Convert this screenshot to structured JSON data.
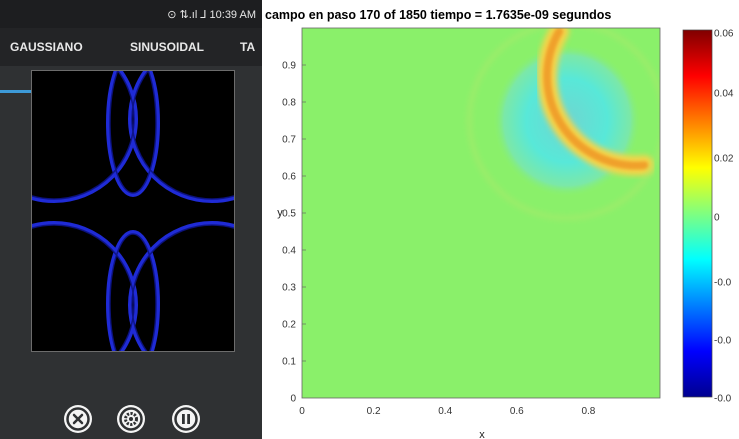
{
  "status_bar": {
    "text": "⊙ ⇅.ıl ⅃ 10:39 AM"
  },
  "tabs": [
    {
      "label": "GAUSSIANO",
      "selected": true
    },
    {
      "label": "SINUSOIDAL",
      "selected": false
    },
    {
      "label": "TA",
      "selected": false
    }
  ],
  "colors": {
    "accent": "#3d9ad8",
    "pattern": "#1f2bd6",
    "field_background": "#8af06a"
  },
  "controls": [
    {
      "icon": "close-icon"
    },
    {
      "icon": "gear-icon"
    },
    {
      "icon": "pause-icon"
    }
  ],
  "chart_data": {
    "type": "heatmap",
    "title": "campo en paso 170 of 1850 tiempo = 1.7635e-09 segundos",
    "xlabel": "x",
    "ylabel": "y",
    "xlim": [
      0,
      1
    ],
    "ylim": [
      0,
      1
    ],
    "x_ticks": [
      "0",
      "0.2",
      "0.4",
      "0.6",
      "0.8"
    ],
    "y_ticks": [
      "0",
      "0.1",
      "0.2",
      "0.3",
      "0.4",
      "0.5",
      "0.6",
      "0.7",
      "0.8",
      "0.9"
    ],
    "colorbar_ticks": [
      "0.06",
      "0.04",
      "0.02",
      "0",
      "-0.0",
      "-0.0",
      "-0.0"
    ],
    "features": [
      {
        "kind": "negative disc",
        "center": [
          0.74,
          0.75
        ],
        "radius": 0.18
      },
      {
        "kind": "positive crescent",
        "center": [
          0.74,
          0.75
        ],
        "radius": 0.25,
        "side": "lower-left"
      }
    ],
    "grid": false
  }
}
